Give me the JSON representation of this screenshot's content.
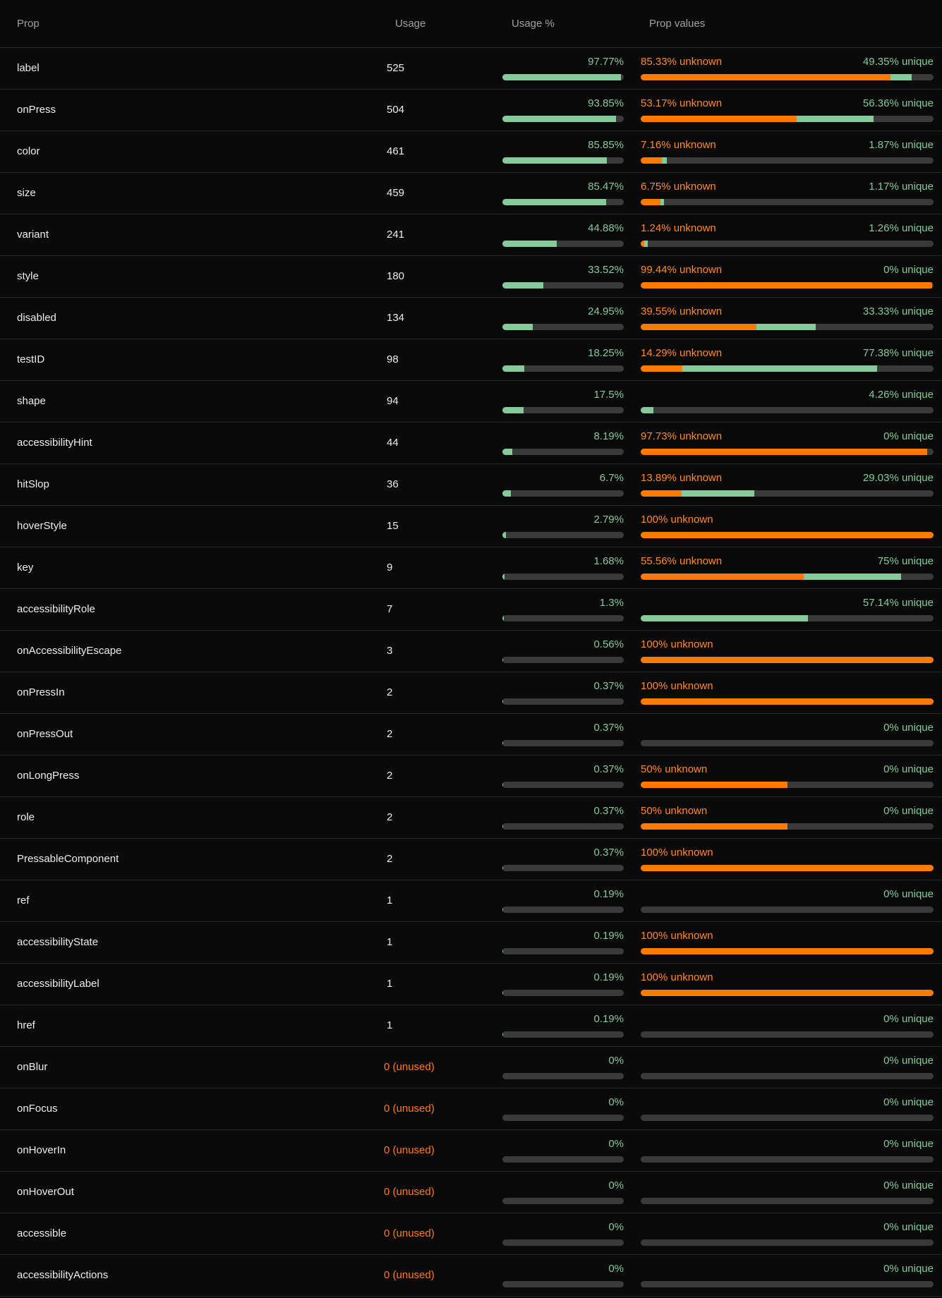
{
  "header": {
    "prop": "Prop",
    "usage": "Usage",
    "usage_pct": "Usage %",
    "prop_values": "Prop values"
  },
  "colors": {
    "accent_green": "#86c99a",
    "accent_orange": "#ff7a00",
    "track": "#3a3a3a",
    "background": "#0a0a0a"
  },
  "rows": [
    {
      "prop": "label",
      "usage": "525",
      "usage_pct_label": "97.77%",
      "usage_pct": 97.77,
      "unknown_label": "85.33% unknown",
      "unknown_pct": 85.33,
      "unique_label": "49.35% unique",
      "unique_pct": 7.24,
      "unused": false
    },
    {
      "prop": "onPress",
      "usage": "504",
      "usage_pct_label": "93.85%",
      "usage_pct": 93.85,
      "unknown_label": "53.17% unknown",
      "unknown_pct": 53.17,
      "unique_label": "56.36% unique",
      "unique_pct": 26.39,
      "unused": false
    },
    {
      "prop": "color",
      "usage": "461",
      "usage_pct_label": "85.85%",
      "usage_pct": 85.85,
      "unknown_label": "7.16% unknown",
      "unknown_pct": 7.16,
      "unique_label": "1.87% unique",
      "unique_pct": 1.74,
      "unused": false
    },
    {
      "prop": "size",
      "usage": "459",
      "usage_pct_label": "85.47%",
      "usage_pct": 85.47,
      "unknown_label": "6.75% unknown",
      "unknown_pct": 6.75,
      "unique_label": "1.17% unique",
      "unique_pct": 1.09,
      "unused": false
    },
    {
      "prop": "variant",
      "usage": "241",
      "usage_pct_label": "44.88%",
      "usage_pct": 44.88,
      "unknown_label": "1.24% unknown",
      "unknown_pct": 1.24,
      "unique_label": "1.26% unique",
      "unique_pct": 1.24,
      "unused": false
    },
    {
      "prop": "style",
      "usage": "180",
      "usage_pct_label": "33.52%",
      "usage_pct": 33.52,
      "unknown_label": "99.44% unknown",
      "unknown_pct": 99.44,
      "unique_label": "0% unique",
      "unique_pct": 0,
      "unused": false
    },
    {
      "prop": "disabled",
      "usage": "134",
      "usage_pct_label": "24.95%",
      "usage_pct": 24.95,
      "unknown_label": "39.55% unknown",
      "unknown_pct": 39.55,
      "unique_label": "33.33% unique",
      "unique_pct": 20.15,
      "unused": false
    },
    {
      "prop": "testID",
      "usage": "98",
      "usage_pct_label": "18.25%",
      "usage_pct": 18.25,
      "unknown_label": "14.29% unknown",
      "unknown_pct": 14.29,
      "unique_label": "77.38% unique",
      "unique_pct": 66.33,
      "unused": false
    },
    {
      "prop": "shape",
      "usage": "94",
      "usage_pct_label": "17.5%",
      "usage_pct": 17.5,
      "unknown_label": "",
      "unknown_pct": 0,
      "unique_label": "4.26% unique",
      "unique_pct": 4.26,
      "unused": false
    },
    {
      "prop": "accessibilityHint",
      "usage": "44",
      "usage_pct_label": "8.19%",
      "usage_pct": 8.19,
      "unknown_label": "97.73% unknown",
      "unknown_pct": 97.73,
      "unique_label": "0% unique",
      "unique_pct": 0,
      "unused": false
    },
    {
      "prop": "hitSlop",
      "usage": "36",
      "usage_pct_label": "6.7%",
      "usage_pct": 6.7,
      "unknown_label": "13.89% unknown",
      "unknown_pct": 13.89,
      "unique_label": "29.03% unique",
      "unique_pct": 25.0,
      "unused": false
    },
    {
      "prop": "hoverStyle",
      "usage": "15",
      "usage_pct_label": "2.79%",
      "usage_pct": 2.79,
      "unknown_label": "100% unknown",
      "unknown_pct": 100,
      "unique_label": "",
      "unique_pct": 0,
      "unused": false
    },
    {
      "prop": "key",
      "usage": "9",
      "usage_pct_label": "1.68%",
      "usage_pct": 1.68,
      "unknown_label": "55.56% unknown",
      "unknown_pct": 55.56,
      "unique_label": "75% unique",
      "unique_pct": 33.33,
      "unused": false
    },
    {
      "prop": "accessibilityRole",
      "usage": "7",
      "usage_pct_label": "1.3%",
      "usage_pct": 1.3,
      "unknown_label": "",
      "unknown_pct": 0,
      "unique_label": "57.14% unique",
      "unique_pct": 57.14,
      "unused": false
    },
    {
      "prop": "onAccessibilityEscape",
      "usage": "3",
      "usage_pct_label": "0.56%",
      "usage_pct": 0.56,
      "unknown_label": "100% unknown",
      "unknown_pct": 100,
      "unique_label": "",
      "unique_pct": 0,
      "unused": false
    },
    {
      "prop": "onPressIn",
      "usage": "2",
      "usage_pct_label": "0.37%",
      "usage_pct": 0.37,
      "unknown_label": "100% unknown",
      "unknown_pct": 100,
      "unique_label": "",
      "unique_pct": 0,
      "unused": false
    },
    {
      "prop": "onPressOut",
      "usage": "2",
      "usage_pct_label": "0.37%",
      "usage_pct": 0.37,
      "unknown_label": "",
      "unknown_pct": 0,
      "unique_label": "0% unique",
      "unique_pct": 0,
      "unused": false
    },
    {
      "prop": "onLongPress",
      "usage": "2",
      "usage_pct_label": "0.37%",
      "usage_pct": 0.37,
      "unknown_label": "50% unknown",
      "unknown_pct": 50,
      "unique_label": "0% unique",
      "unique_pct": 0,
      "unused": false
    },
    {
      "prop": "role",
      "usage": "2",
      "usage_pct_label": "0.37%",
      "usage_pct": 0.37,
      "unknown_label": "50% unknown",
      "unknown_pct": 50,
      "unique_label": "0% unique",
      "unique_pct": 0,
      "unused": false
    },
    {
      "prop": "PressableComponent",
      "usage": "2",
      "usage_pct_label": "0.37%",
      "usage_pct": 0.37,
      "unknown_label": "100% unknown",
      "unknown_pct": 100,
      "unique_label": "",
      "unique_pct": 0,
      "unused": false
    },
    {
      "prop": "ref",
      "usage": "1",
      "usage_pct_label": "0.19%",
      "usage_pct": 0.19,
      "unknown_label": "",
      "unknown_pct": 0,
      "unique_label": "0% unique",
      "unique_pct": 0,
      "unused": false
    },
    {
      "prop": "accessibilityState",
      "usage": "1",
      "usage_pct_label": "0.19%",
      "usage_pct": 0.19,
      "unknown_label": "100% unknown",
      "unknown_pct": 100,
      "unique_label": "",
      "unique_pct": 0,
      "unused": false
    },
    {
      "prop": "accessibilityLabel",
      "usage": "1",
      "usage_pct_label": "0.19%",
      "usage_pct": 0.19,
      "unknown_label": "100% unknown",
      "unknown_pct": 100,
      "unique_label": "",
      "unique_pct": 0,
      "unused": false
    },
    {
      "prop": "href",
      "usage": "1",
      "usage_pct_label": "0.19%",
      "usage_pct": 0.19,
      "unknown_label": "",
      "unknown_pct": 0,
      "unique_label": "0% unique",
      "unique_pct": 0,
      "unused": false
    },
    {
      "prop": "onBlur",
      "usage": "0 (unused)",
      "usage_pct_label": "0%",
      "usage_pct": 0,
      "unknown_label": "",
      "unknown_pct": 0,
      "unique_label": "0% unique",
      "unique_pct": 0,
      "unused": true
    },
    {
      "prop": "onFocus",
      "usage": "0 (unused)",
      "usage_pct_label": "0%",
      "usage_pct": 0,
      "unknown_label": "",
      "unknown_pct": 0,
      "unique_label": "0% unique",
      "unique_pct": 0,
      "unused": true
    },
    {
      "prop": "onHoverIn",
      "usage": "0 (unused)",
      "usage_pct_label": "0%",
      "usage_pct": 0,
      "unknown_label": "",
      "unknown_pct": 0,
      "unique_label": "0% unique",
      "unique_pct": 0,
      "unused": true
    },
    {
      "prop": "onHoverOut",
      "usage": "0 (unused)",
      "usage_pct_label": "0%",
      "usage_pct": 0,
      "unknown_label": "",
      "unknown_pct": 0,
      "unique_label": "0% unique",
      "unique_pct": 0,
      "unused": true
    },
    {
      "prop": "accessible",
      "usage": "0 (unused)",
      "usage_pct_label": "0%",
      "usage_pct": 0,
      "unknown_label": "",
      "unknown_pct": 0,
      "unique_label": "0% unique",
      "unique_pct": 0,
      "unused": true
    },
    {
      "prop": "accessibilityActions",
      "usage": "0 (unused)",
      "usage_pct_label": "0%",
      "usage_pct": 0,
      "unknown_label": "",
      "unknown_pct": 0,
      "unique_label": "0% unique",
      "unique_pct": 0,
      "unused": true
    }
  ]
}
